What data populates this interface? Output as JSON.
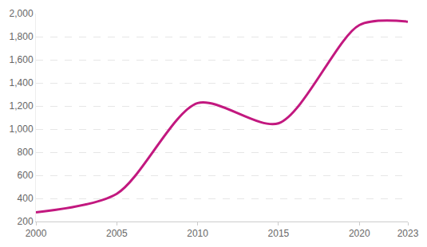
{
  "chart_data": {
    "type": "line",
    "x": [
      2000,
      2005,
      2010,
      2015,
      2020,
      2023
    ],
    "values": [
      280,
      440,
      1225,
      1050,
      1900,
      1930
    ],
    "color": "#c2187f",
    "xlim": [
      2000,
      2023
    ],
    "xticks": [
      2000,
      2005,
      2010,
      2015,
      2020,
      2023
    ],
    "ylim": [
      200,
      2000
    ],
    "yticks": [
      200,
      400,
      600,
      800,
      {
        "value": 1000,
        "label": "1,000"
      },
      {
        "value": 1200,
        "label": "1,200"
      },
      {
        "value": 1400,
        "label": "1,400"
      },
      {
        "value": 1600,
        "label": "1,600"
      },
      {
        "value": 1800,
        "label": "1,800"
      },
      {
        "value": 2000,
        "label": "2,000"
      }
    ],
    "grid": true
  }
}
